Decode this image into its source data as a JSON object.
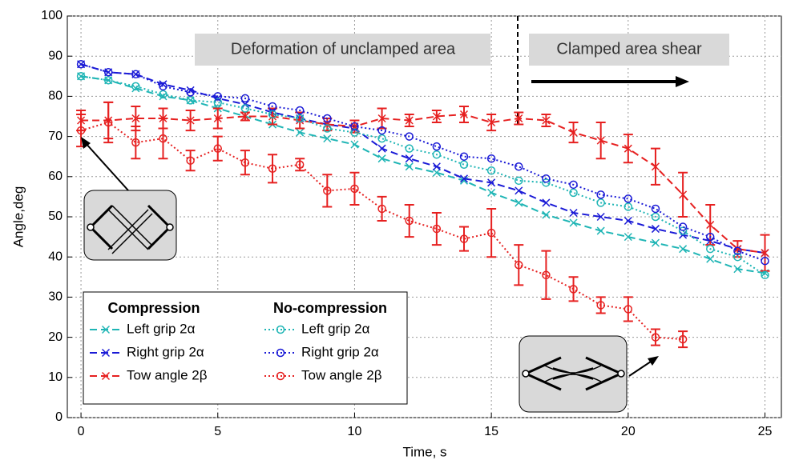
{
  "chart_data": {
    "type": "line",
    "xlabel": "Time, s",
    "ylabel": "Angle,deg",
    "annotations": [
      "Deformation of unclamped area",
      "Clamped area shear"
    ],
    "legend_groups": [
      "Compression",
      "No-compression"
    ],
    "x": [
      0,
      1,
      2,
      3,
      4,
      5,
      6,
      7,
      8,
      9,
      10,
      11,
      12,
      13,
      14,
      15,
      16,
      17,
      18,
      19,
      20,
      21,
      22,
      23,
      24,
      25
    ],
    "xlim": [
      -0.5,
      25.6
    ],
    "xticks": [
      0,
      5,
      10,
      15,
      20,
      25
    ],
    "ylim": [
      0,
      100
    ],
    "yticks": [
      0,
      10,
      20,
      30,
      40,
      50,
      60,
      70,
      80,
      90,
      100
    ],
    "grid": true,
    "series": [
      {
        "name": "Left grip 2α",
        "color": "#1fb5b5",
        "style": "dashed",
        "marker": "x",
        "values": [
          85,
          84,
          82,
          80,
          79,
          77,
          75,
          73,
          71,
          69.5,
          68,
          64.5,
          62.5,
          61,
          59,
          56,
          53.5,
          50.5,
          48.5,
          46.5,
          45,
          43.5,
          42,
          39.5,
          37,
          36
        ]
      },
      {
        "name": "Right grip 2α",
        "color": "#1a1ad6",
        "style": "dashed",
        "marker": "x",
        "values": [
          88,
          86,
          85.5,
          83,
          81.5,
          79.5,
          78,
          76,
          74.5,
          73,
          72,
          67,
          64.5,
          62.5,
          59.5,
          58.5,
          56.5,
          53.5,
          51,
          50,
          49,
          47,
          45.5,
          44,
          42,
          41
        ]
      },
      {
        "name": "Tow angle 2β",
        "color": "#e62020",
        "style": "dashed",
        "marker": "x",
        "values": [
          74,
          74,
          74.5,
          74.5,
          74,
          74.5,
          75,
          75,
          74,
          73,
          72.5,
          74.5,
          74,
          75,
          75.5,
          73.5,
          74.5,
          74,
          71,
          69,
          67,
          62.5,
          55.5,
          48,
          42,
          41
        ],
        "errors": [
          2.5,
          4.5,
          3,
          2.5,
          2.5,
          2.5,
          1,
          2,
          2,
          1.5,
          1.5,
          2.5,
          1.5,
          1.5,
          2,
          2,
          1.5,
          1.5,
          2.5,
          4.5,
          3.5,
          4.5,
          5.5,
          5,
          2,
          4.5
        ]
      },
      {
        "name": "Left grip 2α",
        "color": "#1fb5b5",
        "style": "dotted",
        "marker": "o",
        "values": [
          85,
          84,
          82.5,
          80.5,
          79,
          78.5,
          77,
          75.5,
          74.5,
          72,
          71,
          69.5,
          67,
          65.5,
          63,
          61.5,
          59,
          58.5,
          56,
          53.5,
          52.5,
          50,
          46.5,
          42,
          40,
          35.5
        ]
      },
      {
        "name": "Right grip 2α",
        "color": "#1a1ad6",
        "style": "dotted",
        "marker": "o",
        "values": [
          88,
          86,
          85.5,
          82.5,
          81,
          80,
          79.5,
          77.5,
          76.5,
          74.5,
          72.5,
          71.5,
          70,
          67.5,
          65,
          64.5,
          62.5,
          59.5,
          58,
          55.5,
          54.5,
          52,
          47.5,
          45,
          41.5,
          39
        ]
      },
      {
        "name": "Tow angle 2β",
        "color": "#e62020",
        "style": "dotted",
        "marker": "o",
        "values": [
          71.5,
          73.5,
          68.5,
          69.5,
          64,
          67,
          63.5,
          62,
          63,
          56.5,
          57,
          52,
          49,
          47,
          44.5,
          46,
          38,
          35.5,
          32,
          28,
          27,
          20,
          19.5,
          null,
          null,
          null
        ],
        "errors": [
          4,
          5,
          4,
          5,
          2.5,
          3,
          3,
          3.5,
          1.5,
          4,
          4,
          3,
          4,
          4,
          3,
          6,
          5,
          6,
          3,
          2,
          3,
          2,
          2,
          null,
          null,
          null
        ]
      }
    ]
  }
}
